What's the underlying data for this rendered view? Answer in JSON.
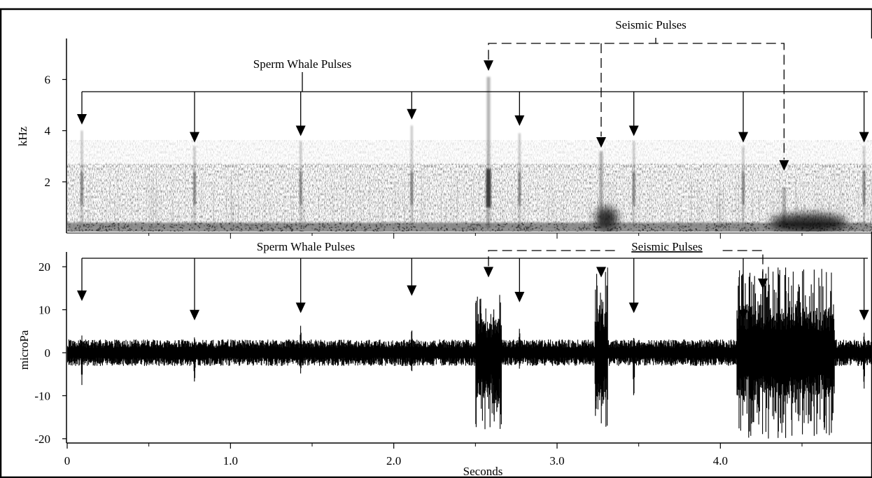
{
  "chart_data": [
    {
      "type": "heatmap",
      "subtype": "spectrogram",
      "ylabel": "kHz",
      "yticks": [
        2,
        4,
        6
      ],
      "ylim": [
        0,
        7.6
      ],
      "xlim": [
        0,
        4.92
      ],
      "colormap": "grayscale",
      "annotations": {
        "whale_label": "Sperm Whale Pulses",
        "seismic_label": "Seismic Pulses",
        "whale_pulses": [
          {
            "t": 0.09,
            "arrow_khz": 4.4,
            "streak_top_khz": 4.0
          },
          {
            "t": 0.78,
            "arrow_khz": 3.7,
            "streak_top_khz": 3.4
          },
          {
            "t": 1.43,
            "arrow_khz": 3.95,
            "streak_top_khz": 3.6
          },
          {
            "t": 2.11,
            "arrow_khz": 4.6,
            "streak_top_khz": 4.2
          },
          {
            "t": 2.77,
            "arrow_khz": 4.35,
            "streak_top_khz": 3.9
          },
          {
            "t": 3.47,
            "arrow_khz": 3.95,
            "streak_top_khz": 3.6
          },
          {
            "t": 4.14,
            "arrow_khz": 3.7,
            "streak_top_khz": 3.4
          },
          {
            "t": 4.88,
            "arrow_khz": 3.7,
            "streak_top_khz": 3.4
          }
        ],
        "seismic_pulses": [
          {
            "t": 2.58,
            "arrow_khz": 6.5,
            "streak_top_khz": 6.1,
            "strength": 1.0
          },
          {
            "t": 3.27,
            "arrow_khz": 3.5,
            "streak_top_khz": 3.2,
            "strength": 1.0
          },
          {
            "t": 4.39,
            "arrow_khz": 2.6,
            "streak_top_khz": 1.8,
            "strength": 0.9
          }
        ]
      }
    },
    {
      "type": "line",
      "subtype": "waveform",
      "xlabel": "Seconds",
      "ylabel": "microPa",
      "xticks": [
        0,
        1.0,
        2.0,
        3.0,
        4.0
      ],
      "xtick_labels": [
        "0",
        "1.0",
        "2.0",
        "3.0",
        "4.0"
      ],
      "yticks": [
        -20,
        -10,
        0,
        10,
        20
      ],
      "ylim": [
        -21,
        21
      ],
      "xlim": [
        0,
        4.92
      ],
      "noise_amplitude": 2.2,
      "events": [
        {
          "t": 0.09,
          "min": -7.5,
          "max": 4
        },
        {
          "t": 0.78,
          "min": -7.5,
          "max": 4
        },
        {
          "t": 1.43,
          "min": -5,
          "max": 6.5
        },
        {
          "t": 2.11,
          "min": -5,
          "max": 6
        },
        {
          "t": 2.58,
          "min": -20,
          "max": 14,
          "burst": 0.08
        },
        {
          "t": 2.77,
          "min": -4,
          "max": 6
        },
        {
          "t": 3.27,
          "min": -20,
          "max": 20,
          "burst": 0.04
        },
        {
          "t": 3.47,
          "min": -11.5,
          "max": 4
        },
        {
          "t": 4.14,
          "min": -11,
          "max": 4.5
        },
        {
          "t": 4.88,
          "min": -9,
          "max": 5
        },
        {
          "t": 4.4,
          "min": -20,
          "max": 20,
          "burst": 0.3
        }
      ],
      "annotations": {
        "whale_label": "Sperm Whale Pulses",
        "seismic_label": "Seismic Pulses",
        "whale_pulses": [
          {
            "t": 0.09,
            "arrow_value": 13
          },
          {
            "t": 0.78,
            "arrow_value": 8.5
          },
          {
            "t": 1.43,
            "arrow_value": 10.2
          },
          {
            "t": 2.11,
            "arrow_value": 14.2
          },
          {
            "t": 2.77,
            "arrow_value": 12.7
          },
          {
            "t": 3.47,
            "arrow_value": 10.2
          },
          {
            "t": 4.14,
            "arrow_value": 8.5
          },
          {
            "t": 4.88,
            "arrow_value": 8.5
          }
        ],
        "seismic_pulses": [
          {
            "t": 2.58,
            "arrow_value": 18.5
          },
          {
            "t": 3.27,
            "arrow_value": 18.5
          },
          {
            "t": 4.26,
            "arrow_value": 15.8
          }
        ]
      }
    }
  ]
}
